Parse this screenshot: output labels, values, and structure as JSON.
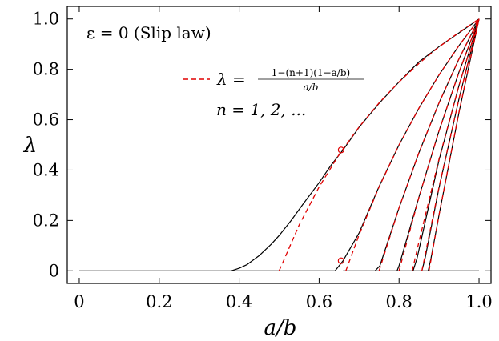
{
  "chart_data": {
    "type": "line",
    "title": "",
    "xlabel": "a/b",
    "ylabel": "λ",
    "xlim": [
      -0.03,
      1.03
    ],
    "ylim": [
      -0.05,
      1.05
    ],
    "xticks": [
      0,
      0.2,
      0.4,
      0.6,
      0.8,
      1.0
    ],
    "xtick_labels": [
      "0",
      "0.2",
      "0.4",
      "0.6",
      "0.8",
      "1.0"
    ],
    "yticks": [
      0,
      0.2,
      0.4,
      0.6,
      0.8,
      1.0
    ],
    "ytick_labels": [
      "0",
      "0.2",
      "0.4",
      "0.6",
      "0.8",
      "1.0"
    ],
    "grid": false,
    "annotations": {
      "regime": "ε = 0 (Slip law)",
      "formula_lhs": "λ =",
      "formula_num": "1−(n+1)(1−a/b)",
      "formula_den": "a/b",
      "n_values": "n = 1, 2, ..."
    },
    "series": [
      {
        "style": "solid",
        "color": "#000000",
        "x": [
          0,
          0.38,
          0.4,
          0.42,
          0.45,
          0.48,
          0.5,
          0.53,
          0.56,
          0.6,
          0.63,
          0.66,
          0.7,
          0.75,
          0.8,
          0.85,
          0.9,
          0.95,
          1.0
        ],
        "y": [
          0,
          0,
          0.01,
          0.025,
          0.06,
          0.105,
          0.14,
          0.2,
          0.265,
          0.35,
          0.42,
          0.48,
          0.57,
          0.665,
          0.75,
          0.83,
          0.89,
          0.945,
          1.0
        ]
      },
      {
        "style": "solid",
        "color": "#000000",
        "x": [
          0.38,
          0.64,
          0.66,
          0.7,
          0.75,
          0.8,
          0.85,
          0.9,
          0.95,
          1.0
        ],
        "y": [
          0,
          0,
          0.04,
          0.15,
          0.335,
          0.5,
          0.647,
          0.778,
          0.895,
          1.0
        ]
      },
      {
        "style": "solid",
        "color": "#000000",
        "x": [
          0.66,
          0.74,
          0.752,
          0.8,
          0.85,
          0.9,
          0.95,
          1.0
        ],
        "y": [
          0,
          0,
          0.02,
          0.25,
          0.47,
          0.667,
          0.842,
          1.0
        ]
      },
      {
        "style": "solid",
        "color": "#000000",
        "x": [
          0.74,
          0.795,
          0.8,
          0.85,
          0.9,
          0.95,
          1.0
        ],
        "y": [
          0,
          0,
          0.02,
          0.295,
          0.556,
          0.79,
          1.0
        ]
      },
      {
        "style": "solid",
        "color": "#000000",
        "x": [
          0.795,
          0.835,
          0.845,
          0.9,
          0.95,
          1.0
        ],
        "y": [
          0,
          0,
          0.05,
          0.44,
          0.737,
          1.0
        ]
      },
      {
        "style": "solid",
        "color": "#000000",
        "x": [
          0.835,
          0.857,
          0.865,
          0.9,
          0.95,
          1.0
        ],
        "y": [
          0,
          0,
          0.05,
          0.33,
          0.684,
          1.0
        ]
      },
      {
        "style": "solid",
        "color": "#000000",
        "x": [
          0.857,
          0.873,
          0.88,
          0.9,
          0.95,
          1.0
        ],
        "y": [
          0,
          0,
          0.05,
          0.222,
          0.63,
          1.0
        ]
      },
      {
        "style": "solid",
        "color": "#000000",
        "x": [
          0.873,
          1.0
        ],
        "y": [
          0,
          0
        ]
      },
      {
        "style": "dashed",
        "color": "#e00000",
        "n": 1,
        "x": [
          0.5,
          0.55,
          0.6,
          0.65,
          0.7,
          0.75,
          0.8,
          0.85,
          0.9,
          0.95,
          1.0
        ],
        "y": [
          0,
          0.182,
          0.333,
          0.462,
          0.571,
          0.667,
          0.75,
          0.824,
          0.889,
          0.947,
          1.0
        ]
      },
      {
        "style": "dashed",
        "color": "#e00000",
        "n": 2,
        "x": [
          0.667,
          0.7,
          0.75,
          0.8,
          0.85,
          0.9,
          0.95,
          1.0
        ],
        "y": [
          0,
          0.143,
          0.333,
          0.5,
          0.647,
          0.778,
          0.895,
          1.0
        ]
      },
      {
        "style": "dashed",
        "color": "#e00000",
        "n": 3,
        "x": [
          0.75,
          0.8,
          0.85,
          0.9,
          0.95,
          1.0
        ],
        "y": [
          0,
          0.25,
          0.471,
          0.667,
          0.842,
          1.0
        ]
      },
      {
        "style": "dashed",
        "color": "#e00000",
        "n": 4,
        "x": [
          0.8,
          0.85,
          0.9,
          0.95,
          1.0
        ],
        "y": [
          0,
          0.294,
          0.556,
          0.789,
          1.0
        ]
      },
      {
        "style": "dashed",
        "color": "#e00000",
        "n": 5,
        "x": [
          0.833,
          0.85,
          0.9,
          0.95,
          1.0
        ],
        "y": [
          0,
          0.118,
          0.444,
          0.737,
          1.0
        ]
      },
      {
        "style": "dashed",
        "color": "#e00000",
        "n": 6,
        "x": [
          0.857,
          0.9,
          0.95,
          1.0
        ],
        "y": [
          0,
          0.333,
          0.684,
          1.0
        ]
      },
      {
        "style": "dashed",
        "color": "#e00000",
        "n": 7,
        "x": [
          0.875,
          0.9,
          0.95,
          1.0
        ],
        "y": [
          0,
          0.222,
          0.632,
          1.0
        ]
      }
    ],
    "markers": [
      {
        "x": 0.655,
        "y": 0.48,
        "color": "#e00000",
        "shape": "open-circle"
      },
      {
        "x": 0.655,
        "y": 0.04,
        "color": "#e00000",
        "shape": "open-circle"
      }
    ]
  }
}
